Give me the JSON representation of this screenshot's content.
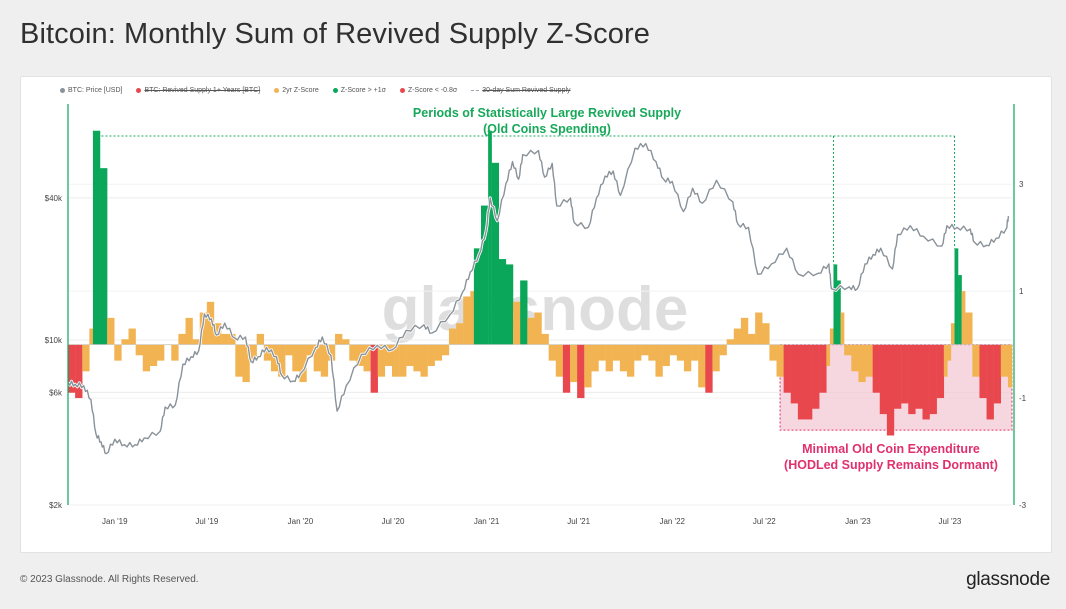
{
  "title": "Bitcoin: Monthly Sum of Revived Supply Z-Score",
  "footer": {
    "copyright": "© 2023 Glassnode. All Rights Reserved.",
    "logo": "glassnode"
  },
  "watermark": "glassnode",
  "colors": {
    "price": "#8a9299",
    "zscore": "#f2b453",
    "zscore_high": "#0aa75a",
    "zscore_low": "#e8474d",
    "annotation_green": "#17a85a",
    "annotation_pink": "#e0306e",
    "dormant_fill": "#f4c6d2"
  },
  "legend": [
    {
      "label": "BTC: Price [USD]",
      "color": "#8a9299",
      "style": "dot",
      "disabled": false
    },
    {
      "label": "BTC: Revived Supply 1+ Years [BTC]",
      "color": "#e8474d",
      "style": "dot",
      "disabled": true
    },
    {
      "label": "2yr Z-Score",
      "color": "#f2b453",
      "style": "dot",
      "disabled": false
    },
    {
      "label": "Z-Score > +1σ",
      "color": "#0aa75a",
      "style": "dot",
      "disabled": false
    },
    {
      "label": "Z-Score < -0.8σ",
      "color": "#e8474d",
      "style": "dot",
      "disabled": false
    },
    {
      "label": "30-day Sum Revived Supply",
      "color": "#9aa4b0",
      "style": "dash",
      "disabled": true
    }
  ],
  "annotations": {
    "large_line1": "Periods of Statistically Large Revived Supply",
    "large_line2": "(Old Coins Spending)",
    "dormant_line1": "Minimal Old Coin Expenditure",
    "dormant_line2": "(HODLed Supply Remains Dormant)"
  },
  "chart_data": {
    "type": "bar",
    "x_start": "2018-10-01",
    "x_end": "2023-10-31",
    "x_ticks": [
      "Jan '19",
      "Jul '19",
      "Jan '20",
      "Jul '20",
      "Jan '21",
      "Jul '21",
      "Jan '22",
      "Jul '22",
      "Jan '23",
      "Jul '23"
    ],
    "x_tick_dates": [
      "2019-01-01",
      "2019-07-01",
      "2020-01-01",
      "2020-07-01",
      "2021-01-01",
      "2021-07-01",
      "2022-01-01",
      "2022-07-01",
      "2023-01-01",
      "2023-07-01"
    ],
    "y_left": {
      "scale": "log",
      "ticks": [
        "$2k",
        "$6k",
        "$10k",
        "$40k"
      ],
      "tick_values": [
        2000,
        6000,
        10000,
        40000
      ],
      "range": [
        2000,
        100000
      ]
    },
    "y_right": {
      "scale": "linear",
      "ticks": [
        "-3",
        "-1",
        "1",
        "3"
      ],
      "tick_values": [
        -3,
        -1,
        1,
        3
      ],
      "range": [
        -3,
        4.5
      ]
    },
    "thresholds": {
      "high": 1,
      "low": -0.8
    },
    "series": [
      {
        "name": "BTC: Price [USD]",
        "type": "line",
        "points": [
          [
            "2018-10-01",
            6600
          ],
          [
            "2018-10-15",
            6500
          ],
          [
            "2018-11-01",
            6400
          ],
          [
            "2018-11-15",
            5600
          ],
          [
            "2018-11-25",
            4000
          ],
          [
            "2018-12-05",
            3700
          ],
          [
            "2018-12-15",
            3300
          ],
          [
            "2019-01-01",
            3800
          ],
          [
            "2019-01-20",
            3600
          ],
          [
            "2019-02-10",
            3600
          ],
          [
            "2019-02-28",
            3850
          ],
          [
            "2019-03-31",
            4100
          ],
          [
            "2019-04-10",
            5200
          ],
          [
            "2019-04-30",
            5300
          ],
          [
            "2019-05-15",
            7900
          ],
          [
            "2019-05-31",
            8500
          ],
          [
            "2019-06-15",
            9000
          ],
          [
            "2019-06-26",
            12900
          ],
          [
            "2019-07-10",
            12300
          ],
          [
            "2019-07-20",
            10500
          ],
          [
            "2019-08-05",
            11800
          ],
          [
            "2019-08-25",
            10200
          ],
          [
            "2019-09-15",
            10300
          ],
          [
            "2019-09-26",
            8100
          ],
          [
            "2019-10-10",
            8500
          ],
          [
            "2019-10-26",
            9300
          ],
          [
            "2019-11-15",
            8500
          ],
          [
            "2019-11-25",
            7100
          ],
          [
            "2019-12-18",
            6700
          ],
          [
            "2020-01-01",
            7200
          ],
          [
            "2020-01-31",
            9300
          ],
          [
            "2020-02-13",
            10300
          ],
          [
            "2020-03-01",
            8600
          ],
          [
            "2020-03-13",
            5000
          ],
          [
            "2020-03-31",
            6400
          ],
          [
            "2020-04-30",
            8700
          ],
          [
            "2020-05-31",
            9500
          ],
          [
            "2020-06-30",
            9100
          ],
          [
            "2020-07-27",
            11000
          ],
          [
            "2020-08-31",
            11600
          ],
          [
            "2020-09-15",
            10700
          ],
          [
            "2020-10-21",
            12800
          ],
          [
            "2020-11-15",
            16000
          ],
          [
            "2020-11-30",
            19400
          ],
          [
            "2020-12-17",
            23000
          ],
          [
            "2020-12-31",
            29000
          ],
          [
            "2021-01-08",
            40000
          ],
          [
            "2021-01-22",
            32000
          ],
          [
            "2021-02-08",
            46000
          ],
          [
            "2021-02-21",
            57000
          ],
          [
            "2021-03-05",
            48000
          ],
          [
            "2021-03-13",
            61000
          ],
          [
            "2021-04-13",
            63500
          ],
          [
            "2021-04-25",
            49000
          ],
          [
            "2021-05-10",
            56000
          ],
          [
            "2021-05-19",
            37000
          ],
          [
            "2021-06-15",
            40000
          ],
          [
            "2021-06-22",
            31500
          ],
          [
            "2021-07-20",
            30000
          ],
          [
            "2021-08-05",
            40000
          ],
          [
            "2021-08-22",
            49500
          ],
          [
            "2021-09-07",
            52000
          ],
          [
            "2021-09-21",
            41000
          ],
          [
            "2021-10-20",
            65000
          ],
          [
            "2021-11-10",
            68000
          ],
          [
            "2021-11-30",
            57000
          ],
          [
            "2021-12-15",
            48000
          ],
          [
            "2022-01-01",
            47000
          ],
          [
            "2022-01-23",
            35000
          ],
          [
            "2022-02-10",
            44000
          ],
          [
            "2022-03-01",
            38000
          ],
          [
            "2022-03-29",
            47500
          ],
          [
            "2022-04-30",
            38500
          ],
          [
            "2022-05-10",
            31000
          ],
          [
            "2022-05-31",
            30000
          ],
          [
            "2022-06-18",
            19000
          ],
          [
            "2022-07-15",
            21000
          ],
          [
            "2022-08-14",
            24500
          ],
          [
            "2022-09-06",
            19000
          ],
          [
            "2022-10-15",
            19200
          ],
          [
            "2022-11-05",
            21000
          ],
          [
            "2022-11-10",
            16500
          ],
          [
            "2022-12-15",
            16800
          ],
          [
            "2022-12-31",
            16500
          ],
          [
            "2023-01-15",
            21000
          ],
          [
            "2023-01-31",
            23000
          ],
          [
            "2023-02-15",
            24500
          ],
          [
            "2023-03-10",
            20000
          ],
          [
            "2023-03-20",
            28000
          ],
          [
            "2023-04-14",
            30500
          ],
          [
            "2023-05-10",
            27500
          ],
          [
            "2023-06-15",
            25000
          ],
          [
            "2023-06-25",
            30500
          ],
          [
            "2023-07-15",
            30000
          ],
          [
            "2023-08-10",
            29500
          ],
          [
            "2023-08-18",
            26000
          ],
          [
            "2023-09-11",
            25200
          ],
          [
            "2023-09-30",
            27000
          ],
          [
            "2023-10-20",
            29700
          ],
          [
            "2023-10-24",
            33500
          ]
        ]
      },
      {
        "name": "2yr Z-Score",
        "type": "bar",
        "points": [
          [
            "2018-10-01",
            -0.9
          ],
          [
            "2018-10-15",
            -1.0
          ],
          [
            "2018-10-29",
            -0.5
          ],
          [
            "2018-11-12",
            0.3
          ],
          [
            "2018-11-19",
            4.0
          ],
          [
            "2018-12-03",
            3.3
          ],
          [
            "2018-12-17",
            0.5
          ],
          [
            "2018-12-31",
            -0.3
          ],
          [
            "2019-01-14",
            0.1
          ],
          [
            "2019-01-28",
            0.3
          ],
          [
            "2019-02-11",
            -0.2
          ],
          [
            "2019-02-25",
            -0.5
          ],
          [
            "2019-03-11",
            -0.4
          ],
          [
            "2019-03-25",
            -0.3
          ],
          [
            "2019-04-08",
            0.0
          ],
          [
            "2019-04-22",
            -0.3
          ],
          [
            "2019-05-06",
            0.2
          ],
          [
            "2019-05-20",
            0.5
          ],
          [
            "2019-06-03",
            0.1
          ],
          [
            "2019-06-17",
            0.6
          ],
          [
            "2019-07-01",
            0.8
          ],
          [
            "2019-07-15",
            0.4
          ],
          [
            "2019-07-29",
            0.2
          ],
          [
            "2019-08-12",
            0.2
          ],
          [
            "2019-08-26",
            -0.6
          ],
          [
            "2019-09-09",
            -0.7
          ],
          [
            "2019-09-23",
            -0.3
          ],
          [
            "2019-10-07",
            0.2
          ],
          [
            "2019-10-21",
            -0.3
          ],
          [
            "2019-11-04",
            -0.5
          ],
          [
            "2019-11-18",
            -0.6
          ],
          [
            "2019-12-02",
            -0.2
          ],
          [
            "2019-12-16",
            -0.5
          ],
          [
            "2019-12-30",
            -0.7
          ],
          [
            "2020-01-13",
            -0.2
          ],
          [
            "2020-01-27",
            -0.5
          ],
          [
            "2020-02-10",
            -0.6
          ],
          [
            "2020-02-24",
            -0.3
          ],
          [
            "2020-03-09",
            0.2
          ],
          [
            "2020-03-23",
            0.1
          ],
          [
            "2020-04-06",
            -0.3
          ],
          [
            "2020-04-20",
            -0.4
          ],
          [
            "2020-05-04",
            -0.5
          ],
          [
            "2020-05-18",
            -0.9
          ],
          [
            "2020-06-01",
            -0.6
          ],
          [
            "2020-06-15",
            -0.4
          ],
          [
            "2020-06-29",
            -0.6
          ],
          [
            "2020-07-13",
            -0.6
          ],
          [
            "2020-07-27",
            -0.4
          ],
          [
            "2020-08-10",
            -0.5
          ],
          [
            "2020-08-24",
            -0.6
          ],
          [
            "2020-09-07",
            -0.4
          ],
          [
            "2020-09-21",
            -0.3
          ],
          [
            "2020-10-05",
            -0.2
          ],
          [
            "2020-10-19",
            0.3
          ],
          [
            "2020-11-02",
            0.4
          ],
          [
            "2020-11-16",
            0.9
          ],
          [
            "2020-11-30",
            1.0
          ],
          [
            "2020-12-07",
            1.8
          ],
          [
            "2020-12-21",
            2.6
          ],
          [
            "2021-01-04",
            4.0
          ],
          [
            "2021-01-11",
            3.4
          ],
          [
            "2021-01-25",
            1.6
          ],
          [
            "2021-02-08",
            1.5
          ],
          [
            "2021-02-22",
            0.8
          ],
          [
            "2021-03-08",
            1.2
          ],
          [
            "2021-03-22",
            0.5
          ],
          [
            "2021-04-05",
            0.6
          ],
          [
            "2021-04-19",
            0.2
          ],
          [
            "2021-05-03",
            -0.3
          ],
          [
            "2021-05-17",
            -0.6
          ],
          [
            "2021-05-31",
            -0.9
          ],
          [
            "2021-06-14",
            -0.7
          ],
          [
            "2021-06-28",
            -1.0
          ],
          [
            "2021-07-12",
            -0.8
          ],
          [
            "2021-07-26",
            -0.5
          ],
          [
            "2021-08-09",
            -0.3
          ],
          [
            "2021-08-23",
            -0.5
          ],
          [
            "2021-09-06",
            -0.3
          ],
          [
            "2021-09-20",
            -0.5
          ],
          [
            "2021-10-04",
            -0.6
          ],
          [
            "2021-10-18",
            -0.3
          ],
          [
            "2021-11-01",
            -0.2
          ],
          [
            "2021-11-15",
            -0.3
          ],
          [
            "2021-11-29",
            -0.6
          ],
          [
            "2021-12-13",
            -0.4
          ],
          [
            "2021-12-27",
            -0.2
          ],
          [
            "2022-01-10",
            -0.3
          ],
          [
            "2022-01-24",
            -0.5
          ],
          [
            "2022-02-07",
            -0.3
          ],
          [
            "2022-02-21",
            -0.8
          ],
          [
            "2022-03-07",
            -0.9
          ],
          [
            "2022-03-21",
            -0.5
          ],
          [
            "2022-04-04",
            -0.2
          ],
          [
            "2022-04-18",
            0.1
          ],
          [
            "2022-05-02",
            0.3
          ],
          [
            "2022-05-16",
            0.5
          ],
          [
            "2022-05-30",
            0.2
          ],
          [
            "2022-06-13",
            0.6
          ],
          [
            "2022-06-27",
            0.4
          ],
          [
            "2022-07-11",
            -0.3
          ],
          [
            "2022-07-25",
            -0.6
          ],
          [
            "2022-08-08",
            -0.9
          ],
          [
            "2022-08-22",
            -1.1
          ],
          [
            "2022-09-05",
            -1.4
          ],
          [
            "2022-09-19",
            -1.4
          ],
          [
            "2022-10-03",
            -1.2
          ],
          [
            "2022-10-17",
            -0.9
          ],
          [
            "2022-10-31",
            -0.4
          ],
          [
            "2022-11-07",
            0.3
          ],
          [
            "2022-11-14",
            1.5
          ],
          [
            "2022-11-21",
            1.2
          ],
          [
            "2022-11-28",
            0.6
          ],
          [
            "2022-12-05",
            -0.2
          ],
          [
            "2022-12-19",
            -0.5
          ],
          [
            "2023-01-02",
            -0.7
          ],
          [
            "2023-01-16",
            -0.6
          ],
          [
            "2023-01-30",
            -0.9
          ],
          [
            "2023-02-13",
            -1.3
          ],
          [
            "2023-02-27",
            -1.7
          ],
          [
            "2023-03-13",
            -1.2
          ],
          [
            "2023-03-27",
            -1.1
          ],
          [
            "2023-04-10",
            -1.3
          ],
          [
            "2023-04-24",
            -1.2
          ],
          [
            "2023-05-08",
            -1.4
          ],
          [
            "2023-05-22",
            -1.3
          ],
          [
            "2023-06-05",
            -1.0
          ],
          [
            "2023-06-19",
            -0.6
          ],
          [
            "2023-06-26",
            -0.3
          ],
          [
            "2023-07-03",
            0.4
          ],
          [
            "2023-07-10",
            1.8
          ],
          [
            "2023-07-17",
            1.3
          ],
          [
            "2023-07-24",
            1.0
          ],
          [
            "2023-07-31",
            0.6
          ],
          [
            "2023-08-14",
            -0.6
          ],
          [
            "2023-08-28",
            -1.0
          ],
          [
            "2023-09-11",
            -1.4
          ],
          [
            "2023-09-25",
            -1.1
          ],
          [
            "2023-10-09",
            -0.6
          ],
          [
            "2023-10-23",
            -0.8
          ]
        ]
      }
    ],
    "highlight_markers": [
      "2018-11-20",
      "2021-01-04",
      "2022-11-14",
      "2023-07-10"
    ],
    "dormant_band": {
      "x_start": "2022-08-01",
      "x_end": "2023-10-31",
      "y_low": -1.6
    }
  }
}
